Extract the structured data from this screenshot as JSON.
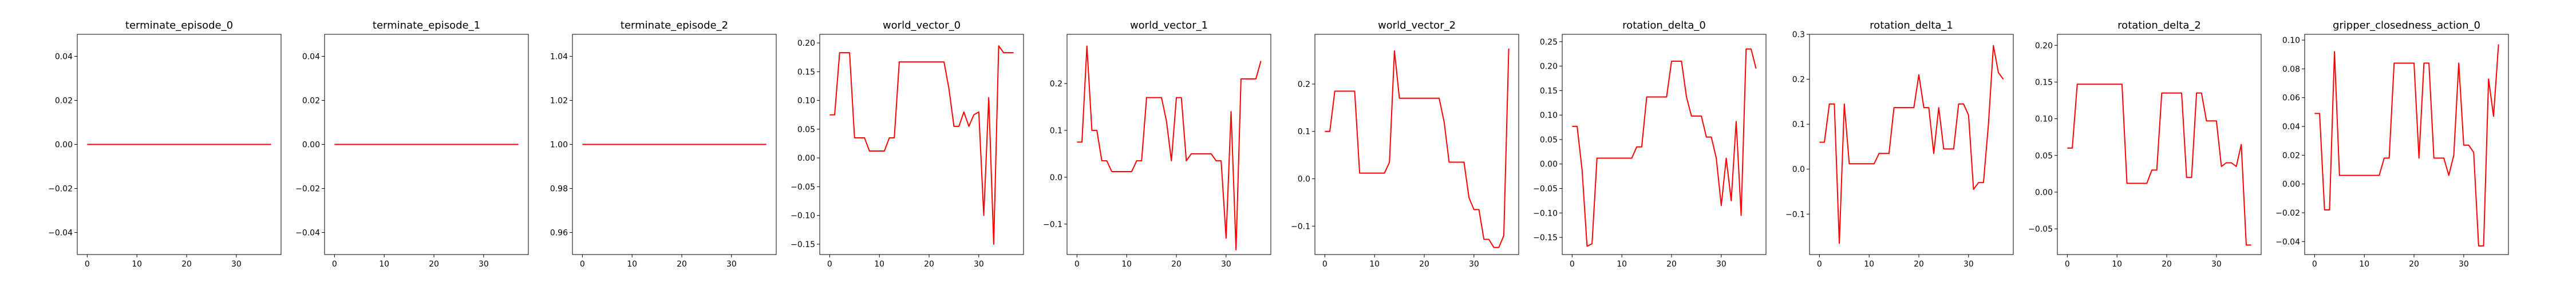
{
  "figure": {
    "background": "#ffffff",
    "line_color": "#ff0000"
  },
  "chart_data": [
    {
      "type": "line",
      "title": "terminate_episode_0",
      "xlim": [
        -2,
        39
      ],
      "ylim": [
        -0.05,
        0.05
      ],
      "xticks": [
        0,
        10,
        20,
        30
      ],
      "yticks": [
        -0.04,
        -0.02,
        0.0,
        0.02,
        0.04
      ],
      "series": [
        {
          "x": [
            0,
            37
          ],
          "y": [
            0,
            0
          ]
        }
      ]
    },
    {
      "type": "line",
      "title": "terminate_episode_1",
      "xlim": [
        -2,
        39
      ],
      "ylim": [
        -0.05,
        0.05
      ],
      "xticks": [
        0,
        10,
        20,
        30
      ],
      "yticks": [
        -0.04,
        -0.02,
        0.0,
        0.02,
        0.04
      ],
      "series": [
        {
          "x": [
            0,
            37
          ],
          "y": [
            0,
            0
          ]
        }
      ]
    },
    {
      "type": "line",
      "title": "terminate_episode_2",
      "xlim": [
        -2,
        39
      ],
      "ylim": [
        0.95,
        1.05
      ],
      "xticks": [
        0,
        10,
        20,
        30
      ],
      "yticks": [
        0.96,
        0.98,
        1.0,
        1.02,
        1.04
      ],
      "series": [
        {
          "x": [
            0,
            37
          ],
          "y": [
            1,
            1
          ]
        }
      ]
    },
    {
      "type": "line",
      "title": "world_vector_0",
      "xlim": [
        -2,
        39
      ],
      "ylim": [
        -0.168,
        0.215
      ],
      "xticks": [
        0,
        10,
        20,
        30
      ],
      "yticks": [
        -0.15,
        -0.1,
        -0.05,
        0.0,
        0.05,
        0.1,
        0.15,
        0.2
      ],
      "series": [
        {
          "x": [
            0,
            1,
            2,
            3,
            4,
            5,
            6,
            7,
            8,
            9,
            10,
            11,
            12,
            13,
            14,
            15,
            16,
            17,
            18,
            19,
            20,
            21,
            22,
            23,
            24,
            25,
            26,
            27,
            28,
            29,
            30,
            31,
            32,
            33,
            34,
            35,
            36,
            37
          ],
          "y": [
            0.075,
            0.075,
            0.183,
            0.183,
            0.183,
            0.035,
            0.035,
            0.035,
            0.012,
            0.012,
            0.012,
            0.012,
            0.035,
            0.035,
            0.167,
            0.167,
            0.167,
            0.167,
            0.167,
            0.167,
            0.167,
            0.167,
            0.167,
            0.167,
            0.12,
            0.055,
            0.055,
            0.08,
            0.055,
            0.075,
            0.08,
            -0.1,
            0.105,
            -0.15,
            0.195,
            0.183,
            0.183,
            0.183
          ]
        }
      ]
    },
    {
      "type": "line",
      "title": "world_vector_1",
      "xlim": [
        -2,
        39
      ],
      "ylim": [
        -0.165,
        0.305
      ],
      "xticks": [
        0,
        10,
        20,
        30
      ],
      "yticks": [
        -0.1,
        0.0,
        0.1,
        0.2
      ],
      "series": [
        {
          "x": [
            0,
            1,
            2,
            3,
            4,
            5,
            6,
            7,
            8,
            9,
            10,
            11,
            12,
            13,
            14,
            15,
            16,
            17,
            18,
            19,
            20,
            21,
            22,
            23,
            24,
            25,
            26,
            27,
            28,
            29,
            30,
            31,
            32,
            33,
            34,
            35,
            36,
            37
          ],
          "y": [
            0.075,
            0.075,
            0.28,
            0.1,
            0.1,
            0.035,
            0.035,
            0.012,
            0.012,
            0.012,
            0.012,
            0.012,
            0.035,
            0.035,
            0.17,
            0.17,
            0.17,
            0.17,
            0.12,
            0.035,
            0.17,
            0.17,
            0.035,
            0.05,
            0.05,
            0.05,
            0.05,
            0.05,
            0.035,
            0.035,
            -0.13,
            0.14,
            -0.155,
            0.21,
            0.21,
            0.21,
            0.21,
            0.248
          ]
        }
      ]
    },
    {
      "type": "line",
      "title": "world_vector_2",
      "xlim": [
        -2,
        39
      ],
      "ylim": [
        -0.16,
        0.305
      ],
      "xticks": [
        0,
        10,
        20,
        30
      ],
      "yticks": [
        -0.1,
        0.0,
        0.1,
        0.2
      ],
      "series": [
        {
          "x": [
            0,
            1,
            2,
            3,
            4,
            5,
            6,
            7,
            8,
            9,
            10,
            11,
            12,
            13,
            14,
            15,
            16,
            17,
            18,
            19,
            20,
            21,
            22,
            23,
            24,
            25,
            26,
            27,
            28,
            29,
            30,
            31,
            32,
            33,
            34,
            35,
            36,
            37
          ],
          "y": [
            0.1,
            0.1,
            0.185,
            0.185,
            0.185,
            0.185,
            0.185,
            0.012,
            0.012,
            0.012,
            0.012,
            0.012,
            0.012,
            0.035,
            0.27,
            0.17,
            0.17,
            0.17,
            0.17,
            0.17,
            0.17,
            0.17,
            0.17,
            0.17,
            0.12,
            0.035,
            0.035,
            0.035,
            0.035,
            -0.04,
            -0.065,
            -0.065,
            -0.128,
            -0.128,
            -0.145,
            -0.145,
            -0.12,
            0.275
          ]
        }
      ]
    },
    {
      "type": "line",
      "title": "rotation_delta_0",
      "xlim": [
        -2,
        39
      ],
      "ylim": [
        -0.185,
        0.265
      ],
      "xticks": [
        0,
        10,
        20,
        30
      ],
      "yticks": [
        -0.15,
        -0.1,
        -0.05,
        0.0,
        0.05,
        0.1,
        0.15,
        0.2,
        0.25
      ],
      "series": [
        {
          "x": [
            0,
            1,
            2,
            3,
            4,
            5,
            6,
            7,
            8,
            9,
            10,
            11,
            12,
            13,
            14,
            15,
            16,
            17,
            18,
            19,
            20,
            21,
            22,
            23,
            24,
            25,
            26,
            27,
            28,
            29,
            30,
            31,
            32,
            33,
            34,
            35,
            36,
            37
          ],
          "y": [
            0.077,
            0.077,
            -0.012,
            -0.168,
            -0.163,
            0.012,
            0.012,
            0.012,
            0.012,
            0.012,
            0.012,
            0.012,
            0.012,
            0.035,
            0.035,
            0.137,
            0.137,
            0.137,
            0.137,
            0.137,
            0.21,
            0.21,
            0.21,
            0.137,
            0.098,
            0.098,
            0.098,
            0.055,
            0.055,
            0.012,
            -0.085,
            0.012,
            -0.075,
            0.087,
            -0.105,
            0.235,
            0.235,
            0.195
          ]
        }
      ]
    },
    {
      "type": "line",
      "title": "rotation_delta_1",
      "xlim": [
        -2,
        39
      ],
      "ylim": [
        -0.19,
        0.3
      ],
      "xticks": [
        0,
        10,
        20,
        30
      ],
      "yticks": [
        -0.1,
        0.0,
        0.1,
        0.2,
        0.3
      ],
      "series": [
        {
          "x": [
            0,
            1,
            2,
            3,
            4,
            5,
            6,
            7,
            8,
            9,
            10,
            11,
            12,
            13,
            14,
            15,
            16,
            17,
            18,
            19,
            20,
            21,
            22,
            23,
            24,
            25,
            26,
            27,
            28,
            29,
            30,
            31,
            32,
            33,
            34,
            35,
            36,
            37
          ],
          "y": [
            0.06,
            0.06,
            0.145,
            0.145,
            -0.165,
            0.145,
            0.012,
            0.012,
            0.012,
            0.012,
            0.012,
            0.012,
            0.035,
            0.035,
            0.035,
            0.137,
            0.137,
            0.137,
            0.137,
            0.137,
            0.21,
            0.137,
            0.137,
            0.035,
            0.137,
            0.045,
            0.045,
            0.045,
            0.145,
            0.145,
            0.12,
            -0.045,
            -0.03,
            -0.03,
            0.1,
            0.275,
            0.215,
            0.2
          ]
        }
      ]
    },
    {
      "type": "line",
      "title": "rotation_delta_2",
      "xlim": [
        -2,
        39
      ],
      "ylim": [
        -0.085,
        0.215
      ],
      "xticks": [
        0,
        10,
        20,
        30
      ],
      "yticks": [
        -0.05,
        0.0,
        0.05,
        0.1,
        0.15,
        0.2
      ],
      "series": [
        {
          "x": [
            0,
            1,
            2,
            3,
            4,
            5,
            6,
            7,
            8,
            9,
            10,
            11,
            12,
            13,
            14,
            15,
            16,
            17,
            18,
            19,
            20,
            21,
            22,
            23,
            24,
            25,
            26,
            27,
            28,
            29,
            30,
            31,
            32,
            33,
            34,
            35,
            36,
            37
          ],
          "y": [
            0.06,
            0.06,
            0.147,
            0.147,
            0.147,
            0.147,
            0.147,
            0.147,
            0.147,
            0.147,
            0.147,
            0.147,
            0.012,
            0.012,
            0.012,
            0.012,
            0.012,
            0.03,
            0.03,
            0.135,
            0.135,
            0.135,
            0.135,
            0.135,
            0.02,
            0.02,
            0.135,
            0.135,
            0.097,
            0.097,
            0.097,
            0.035,
            0.04,
            0.04,
            0.035,
            0.065,
            -0.072,
            -0.072
          ]
        }
      ]
    },
    {
      "type": "line",
      "title": "gripper_closedness_action_0",
      "xlim": [
        -2,
        39
      ],
      "ylim": [
        -0.049,
        0.104
      ],
      "xticks": [
        0,
        10,
        20,
        30
      ],
      "yticks": [
        -0.04,
        -0.02,
        0.0,
        0.02,
        0.04,
        0.06,
        0.08,
        0.1
      ],
      "series": [
        {
          "x": [
            0,
            1,
            2,
            3,
            4,
            5,
            6,
            7,
            8,
            9,
            10,
            11,
            12,
            13,
            14,
            15,
            16,
            17,
            18,
            19,
            20,
            21,
            22,
            23,
            24,
            25,
            26,
            27,
            28,
            29,
            30,
            31,
            32,
            33,
            34,
            35,
            36,
            37
          ],
          "y": [
            0.049,
            0.049,
            -0.018,
            -0.018,
            0.092,
            0.006,
            0.006,
            0.006,
            0.006,
            0.006,
            0.006,
            0.006,
            0.006,
            0.006,
            0.018,
            0.018,
            0.084,
            0.084,
            0.084,
            0.084,
            0.084,
            0.018,
            0.084,
            0.084,
            0.018,
            0.018,
            0.018,
            0.006,
            0.02,
            0.084,
            0.027,
            0.027,
            0.022,
            -0.043,
            -0.043,
            0.073,
            0.047,
            0.097
          ]
        }
      ]
    }
  ]
}
